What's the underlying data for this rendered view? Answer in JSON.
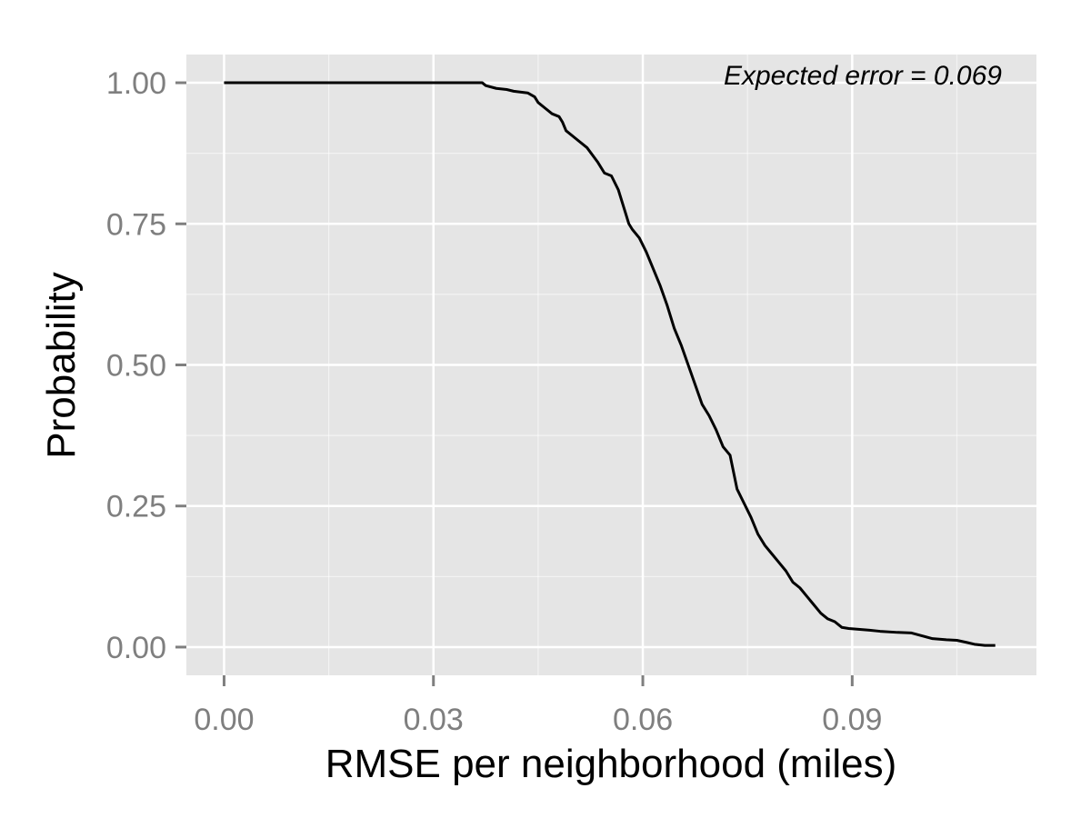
{
  "chart_data": {
    "type": "line",
    "title": "",
    "xlabel": "RMSE per neighborhood (miles)",
    "ylabel": "Probability",
    "xlim": [
      -0.0054,
      0.1164
    ],
    "ylim": [
      -0.05,
      1.05
    ],
    "x_ticks": [
      0.0,
      0.03,
      0.06,
      0.09
    ],
    "x_tick_labels": [
      "0.00",
      "0.03",
      "0.06",
      "0.09"
    ],
    "x_minor_ticks": [
      0.015,
      0.045,
      0.075,
      0.105
    ],
    "y_ticks": [
      0.0,
      0.25,
      0.5,
      0.75,
      1.0
    ],
    "y_tick_labels": [
      "0.00",
      "0.25",
      "0.50",
      "0.75",
      "1.00"
    ],
    "y_minor_ticks": [
      0.125,
      0.375,
      0.625,
      0.875
    ],
    "grid": true,
    "legend": "none",
    "annotation": "Expected error = 0.069",
    "colors": {
      "panel": "#e5e5e5",
      "grid": "#ffffff",
      "line": "#000000",
      "tick": "#7f7f7f"
    },
    "series": [
      {
        "x": [
          0.0,
          0.037,
          0.0375,
          0.039,
          0.0405,
          0.0415,
          0.0435,
          0.0445,
          0.045,
          0.046,
          0.047,
          0.048,
          0.0485,
          0.049,
          0.0505,
          0.052,
          0.0535,
          0.0545,
          0.0555,
          0.0565,
          0.0575,
          0.058,
          0.0585,
          0.0595,
          0.0605,
          0.0615,
          0.0625,
          0.0635,
          0.0645,
          0.0655,
          0.0665,
          0.0675,
          0.0685,
          0.0695,
          0.0705,
          0.0715,
          0.0725,
          0.0735,
          0.0745,
          0.0755,
          0.0765,
          0.0775,
          0.0785,
          0.0795,
          0.0805,
          0.0815,
          0.0825,
          0.0835,
          0.0845,
          0.0855,
          0.0865,
          0.0875,
          0.0885,
          0.0895,
          0.0905,
          0.0915,
          0.0925,
          0.094,
          0.0965,
          0.0985,
          0.1,
          0.1015,
          0.1035,
          0.105,
          0.1065,
          0.1075,
          0.109,
          0.1105
        ],
        "y": [
          1.0,
          1.0,
          0.995,
          0.99,
          0.988,
          0.985,
          0.982,
          0.975,
          0.965,
          0.955,
          0.945,
          0.94,
          0.93,
          0.915,
          0.9,
          0.885,
          0.86,
          0.84,
          0.835,
          0.81,
          0.77,
          0.75,
          0.74,
          0.725,
          0.7,
          0.67,
          0.64,
          0.605,
          0.565,
          0.535,
          0.5,
          0.465,
          0.43,
          0.41,
          0.385,
          0.355,
          0.34,
          0.28,
          0.255,
          0.23,
          0.2,
          0.18,
          0.165,
          0.15,
          0.135,
          0.115,
          0.105,
          0.09,
          0.075,
          0.06,
          0.05,
          0.045,
          0.035,
          0.033,
          0.032,
          0.031,
          0.03,
          0.028,
          0.026,
          0.025,
          0.02,
          0.015,
          0.013,
          0.012,
          0.008,
          0.005,
          0.003,
          0.003
        ]
      }
    ]
  }
}
